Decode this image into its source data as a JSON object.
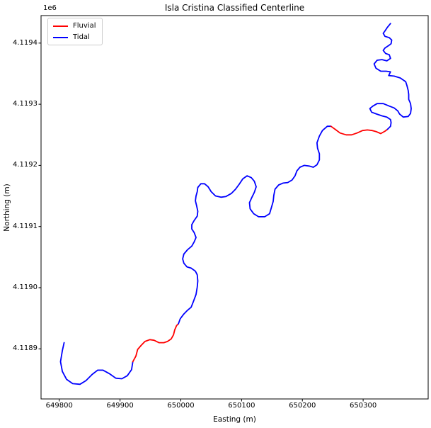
{
  "chart_data": {
    "type": "line",
    "title": "Isla Cristina Classified Centerline",
    "xlabel": "Easting (m)",
    "ylabel": "Northing (m)",
    "y_offset_label": "1e6",
    "xlim": [
      649770,
      650407
    ],
    "ylim": [
      4118818,
      4119445
    ],
    "grid": false,
    "legend_position": "upper left",
    "xticks": [
      {
        "value": 649800,
        "label": "649800"
      },
      {
        "value": 649900,
        "label": "649900"
      },
      {
        "value": 650000,
        "label": "650000"
      },
      {
        "value": 650100,
        "label": "650100"
      },
      {
        "value": 650200,
        "label": "650200"
      },
      {
        "value": 650300,
        "label": "650300"
      }
    ],
    "yticks": [
      {
        "value": 4118900,
        "label": "4.1189"
      },
      {
        "value": 4119000,
        "label": "4.1190"
      },
      {
        "value": 4119100,
        "label": "4.1191"
      },
      {
        "value": 4119200,
        "label": "4.1192"
      },
      {
        "value": 4119300,
        "label": "4.1193"
      },
      {
        "value": 4119400,
        "label": "4.1194"
      }
    ],
    "legend": [
      {
        "label": "Fluvial",
        "color": "#ff0000"
      },
      {
        "label": "Tidal",
        "color": "#0000ff"
      }
    ],
    "colors": {
      "Fluvial": "#ff0000",
      "Tidal": "#0000ff"
    },
    "series": [
      {
        "name": "Tidal",
        "class": "Tidal",
        "points": [
          [
            649808,
            4118910
          ],
          [
            649805,
            4118897
          ],
          [
            649802,
            4118879
          ],
          [
            649805,
            4118863
          ],
          [
            649812,
            4118850
          ],
          [
            649822,
            4118843
          ],
          [
            649834,
            4118842
          ],
          [
            649844,
            4118848
          ],
          [
            649854,
            4118858
          ],
          [
            649863,
            4118865
          ],
          [
            649872,
            4118865
          ],
          [
            649883,
            4118859
          ],
          [
            649893,
            4118852
          ],
          [
            649903,
            4118851
          ],
          [
            649912,
            4118856
          ],
          [
            649919,
            4118866
          ],
          [
            649921,
            4118879
          ]
        ]
      },
      {
        "name": "Fluvial",
        "class": "Fluvial",
        "points": [
          [
            649921,
            4118879
          ],
          [
            649926,
            4118888
          ],
          [
            649929,
            4118899
          ],
          [
            649935,
            4118906
          ],
          [
            649941,
            4118912
          ],
          [
            649949,
            4118915
          ],
          [
            649956,
            4118914
          ],
          [
            649964,
            4118910
          ],
          [
            649972,
            4118910
          ],
          [
            649978,
            4118912
          ],
          [
            649984,
            4118916
          ],
          [
            649988,
            4118923
          ],
          [
            649990,
            4118931
          ],
          [
            649993,
            4118938
          ],
          [
            649996,
            4118941
          ]
        ]
      },
      {
        "name": "Tidal",
        "class": "Tidal",
        "points": [
          [
            649996,
            4118941
          ],
          [
            649999,
            4118949
          ],
          [
            650005,
            4118957
          ],
          [
            650011,
            4118963
          ],
          [
            650017,
            4118968
          ],
          [
            650021,
            4118978
          ],
          [
            650025,
            4118989
          ],
          [
            650027,
            4119001
          ],
          [
            650028,
            4119011
          ],
          [
            650027,
            4119021
          ],
          [
            650024,
            4119027
          ],
          [
            650017,
            4119032
          ],
          [
            650010,
            4119034
          ],
          [
            650005,
            4119040
          ],
          [
            650003,
            4119047
          ],
          [
            650005,
            4119055
          ],
          [
            650011,
            4119062
          ],
          [
            650018,
            4119068
          ],
          [
            650022,
            4119075
          ],
          [
            650025,
            4119082
          ],
          [
            650022,
            4119090
          ],
          [
            650018,
            4119096
          ],
          [
            650018,
            4119103
          ],
          [
            650022,
            4119110
          ],
          [
            650027,
            4119117
          ],
          [
            650028,
            4119125
          ],
          [
            650026,
            4119134
          ],
          [
            650024,
            4119142
          ],
          [
            650025,
            4119150
          ],
          [
            650027,
            4119157
          ],
          [
            650028,
            4119164
          ],
          [
            650033,
            4119170
          ],
          [
            650039,
            4119170
          ],
          [
            650045,
            4119165
          ],
          [
            650050,
            4119157
          ],
          [
            650057,
            4119150
          ],
          [
            650066,
            4119148
          ],
          [
            650074,
            4119149
          ],
          [
            650083,
            4119154
          ],
          [
            650090,
            4119161
          ],
          [
            650096,
            4119169
          ],
          [
            650102,
            4119178
          ],
          [
            650109,
            4119183
          ],
          [
            650116,
            4119180
          ],
          [
            650121,
            4119174
          ],
          [
            650124,
            4119165
          ],
          [
            650121,
            4119156
          ],
          [
            650117,
            4119148
          ],
          [
            650113,
            4119139
          ],
          [
            650114,
            4119129
          ],
          [
            650120,
            4119121
          ],
          [
            650128,
            4119116
          ],
          [
            650138,
            4119116
          ],
          [
            650146,
            4119121
          ],
          [
            650149,
            4119131
          ],
          [
            650152,
            4119141
          ],
          [
            650153,
            4119151
          ],
          [
            650155,
            4119161
          ],
          [
            650161,
            4119168
          ],
          [
            650168,
            4119171
          ],
          [
            650176,
            4119172
          ],
          [
            650183,
            4119176
          ],
          [
            650188,
            4119183
          ],
          [
            650191,
            4119191
          ],
          [
            650196,
            4119197
          ],
          [
            650203,
            4119200
          ],
          [
            650211,
            4119199
          ],
          [
            650218,
            4119197
          ],
          [
            650224,
            4119201
          ],
          [
            650228,
            4119209
          ],
          [
            650228,
            4119219
          ],
          [
            650225,
            4119228
          ],
          [
            650224,
            4119237
          ],
          [
            650228,
            4119248
          ],
          [
            650233,
            4119257
          ],
          [
            650241,
            4119264
          ],
          [
            650247,
            4119264
          ]
        ]
      },
      {
        "name": "Fluvial",
        "class": "Fluvial",
        "points": [
          [
            650247,
            4119264
          ],
          [
            650254,
            4119259
          ],
          [
            650262,
            4119253
          ],
          [
            650272,
            4119250
          ],
          [
            650281,
            4119250
          ],
          [
            650290,
            4119253
          ],
          [
            650299,
            4119257
          ],
          [
            650307,
            4119258
          ],
          [
            650315,
            4119257
          ],
          [
            650322,
            4119255
          ],
          [
            650329,
            4119252
          ],
          [
            650336,
            4119256
          ],
          [
            650340,
            4119259
          ]
        ]
      },
      {
        "name": "Tidal",
        "class": "Tidal",
        "points": [
          [
            650340,
            4119259
          ],
          [
            650345,
            4119264
          ],
          [
            650346,
            4119270
          ],
          [
            650345,
            4119275
          ],
          [
            650339,
            4119279
          ],
          [
            650331,
            4119281
          ],
          [
            650322,
            4119284
          ],
          [
            650314,
            4119287
          ],
          [
            650311,
            4119293
          ],
          [
            650316,
            4119297
          ],
          [
            650323,
            4119301
          ],
          [
            650333,
            4119301
          ],
          [
            650343,
            4119297
          ],
          [
            650351,
            4119294
          ],
          [
            650357,
            4119289
          ],
          [
            650360,
            4119284
          ],
          [
            650366,
            4119279
          ],
          [
            650374,
            4119280
          ],
          [
            650378,
            4119285
          ],
          [
            650379,
            4119293
          ],
          [
            650378,
            4119301
          ],
          [
            650375,
            4119308
          ],
          [
            650375,
            4119316
          ],
          [
            650374,
            4119323
          ],
          [
            650372,
            4119331
          ],
          [
            650370,
            4119337
          ],
          [
            650361,
            4119343
          ],
          [
            650351,
            4119346
          ],
          [
            650342,
            4119347
          ],
          [
            650345,
            4119353
          ],
          [
            650338,
            4119354
          ],
          [
            650329,
            4119354
          ],
          [
            650321,
            4119359
          ],
          [
            650318,
            4119366
          ],
          [
            650323,
            4119372
          ],
          [
            650331,
            4119373
          ],
          [
            650339,
            4119371
          ],
          [
            650345,
            4119375
          ],
          [
            650343,
            4119381
          ],
          [
            650337,
            4119383
          ],
          [
            650333,
            4119388
          ],
          [
            650336,
            4119392
          ],
          [
            650342,
            4119396
          ],
          [
            650346,
            4119399
          ],
          [
            650347,
            4119405
          ],
          [
            650343,
            4119409
          ],
          [
            650336,
            4119411
          ],
          [
            650333,
            4119416
          ],
          [
            650336,
            4119420
          ],
          [
            650340,
            4119426
          ],
          [
            650345,
            4119432
          ]
        ]
      }
    ]
  }
}
